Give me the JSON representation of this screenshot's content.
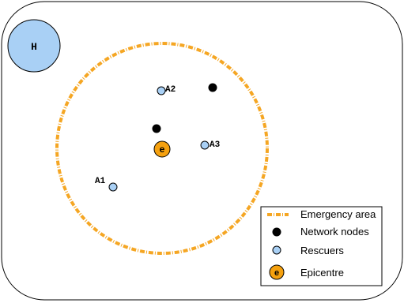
{
  "headquarters": {
    "label": "H",
    "fill": "#a9d0f5"
  },
  "epicentre": {
    "label": "e",
    "fill": "#f5a10f"
  },
  "rescuers": [
    {
      "label": "A1"
    },
    {
      "label": "A2"
    },
    {
      "label": "A3"
    }
  ],
  "colors": {
    "emergency_area": "#f5a623",
    "rescuer_fill": "#a9d0f5",
    "node_fill": "#000000",
    "epicentre_fill": "#f5a10f"
  },
  "legend": {
    "items": [
      {
        "key": "emergency-area",
        "label": "Emergency area",
        "icon": "dashed-line-icon"
      },
      {
        "key": "network-nodes",
        "label": "Network nodes",
        "icon": "black-dot-icon"
      },
      {
        "key": "rescuers",
        "label": "Rescuers",
        "icon": "blue-circle-icon"
      },
      {
        "key": "epicentre",
        "label": "Epicentre",
        "icon": "orange-e-icon"
      }
    ],
    "epicentre_symbol": "e"
  }
}
